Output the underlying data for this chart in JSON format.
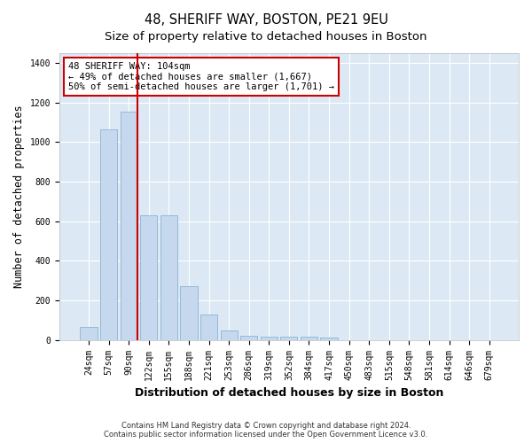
{
  "title": "48, SHERIFF WAY, BOSTON, PE21 9EU",
  "subtitle": "Size of property relative to detached houses in Boston",
  "xlabel": "Distribution of detached houses by size in Boston",
  "ylabel": "Number of detached properties",
  "categories": [
    "24sqm",
    "57sqm",
    "90sqm",
    "122sqm",
    "155sqm",
    "188sqm",
    "221sqm",
    "253sqm",
    "286sqm",
    "319sqm",
    "352sqm",
    "384sqm",
    "417sqm",
    "450sqm",
    "483sqm",
    "515sqm",
    "548sqm",
    "581sqm",
    "614sqm",
    "646sqm",
    "679sqm"
  ],
  "values": [
    65,
    1065,
    1155,
    630,
    630,
    270,
    130,
    48,
    20,
    15,
    15,
    15,
    10,
    0,
    0,
    0,
    0,
    0,
    0,
    0,
    0
  ],
  "bar_color": "#c5d8ed",
  "bar_edge_color": "#7aaace",
  "annotation_text": "48 SHERIFF WAY: 104sqm\n← 49% of detached houses are smaller (1,667)\n50% of semi-detached houses are larger (1,701) →",
  "annotation_box_color": "#ffffff",
  "annotation_box_edge_color": "#cc0000",
  "red_line_color": "#cc0000",
  "ylim": [
    0,
    1450
  ],
  "yticks": [
    0,
    200,
    400,
    600,
    800,
    1000,
    1200,
    1400
  ],
  "background_color": "#dce9f5",
  "grid_color": "#ffffff",
  "footer1": "Contains HM Land Registry data © Crown copyright and database right 2024.",
  "footer2": "Contains public sector information licensed under the Open Government Licence v3.0.",
  "title_fontsize": 10.5,
  "subtitle_fontsize": 9.5,
  "xlabel_fontsize": 9,
  "ylabel_fontsize": 8.5,
  "tick_fontsize": 7,
  "annot_fontsize": 7.5,
  "footer_fontsize": 6
}
